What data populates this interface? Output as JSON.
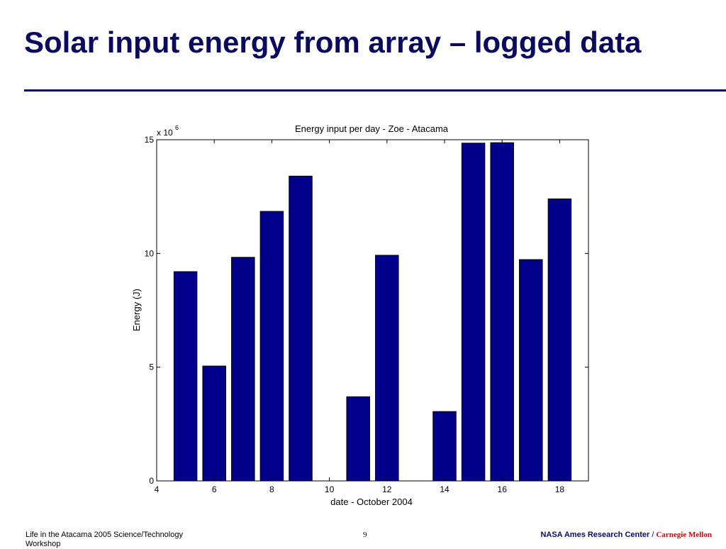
{
  "slide": {
    "title": "Solar input energy from array – logged data",
    "footer_left": "Life in the Atacama 2005 Science/Technology Workshop",
    "page_number": "9",
    "footer_org": "NASA Ames Research Center",
    "footer_sep": "/",
    "footer_org2": "Carnegie Mellon"
  },
  "colors": {
    "title": "#0b0b5e",
    "bar": "#00008b",
    "accent_red": "#b01010"
  },
  "chart_data": {
    "type": "bar",
    "title": "Energy input per day - Zoe - Atacama",
    "xlabel": "date - October 2004",
    "ylabel": "Energy (J)",
    "y_multiplier_label": "x 10",
    "y_multiplier_exp": "6",
    "x": [
      5,
      6,
      7,
      8,
      9,
      11,
      12,
      14,
      15,
      16,
      17,
      18
    ],
    "values": [
      9.2,
      5.05,
      9.83,
      11.85,
      13.4,
      3.7,
      9.92,
      3.05,
      14.85,
      14.87,
      9.73,
      12.4
    ],
    "value_scale": 1000000,
    "xlim": [
      4,
      19
    ],
    "ylim": [
      0,
      15
    ],
    "x_ticks": [
      4,
      6,
      8,
      10,
      12,
      14,
      16,
      18
    ],
    "y_ticks": [
      0,
      5,
      10,
      15
    ],
    "grid": false
  }
}
